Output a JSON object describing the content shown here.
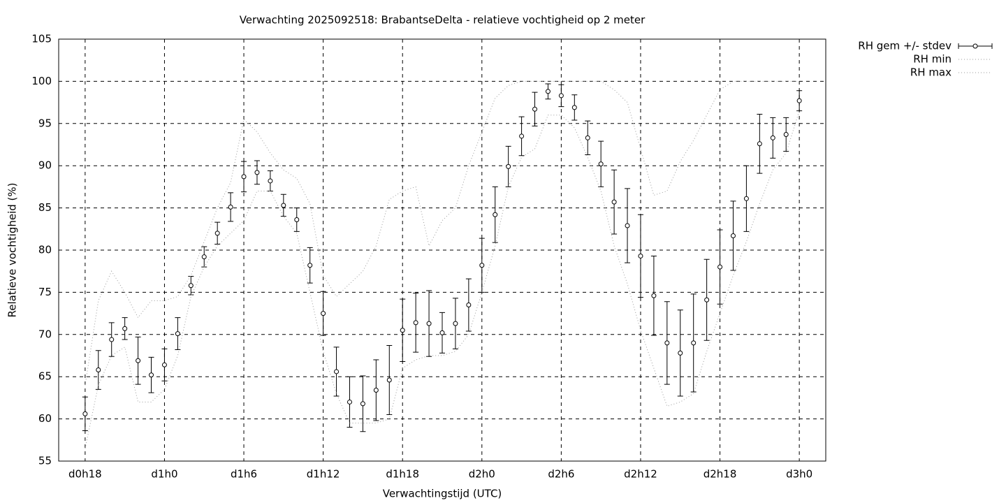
{
  "chart_data": {
    "type": "errorbar-line",
    "title": "Verwachting 2025092518: BrabantseDelta - relatieve vochtigheid op 2 meter",
    "xlabel": "Verwachtingstijd (UTC)",
    "ylabel": "Relatieve vochtigheid (%)",
    "x": [
      18,
      19,
      20,
      21,
      22,
      23,
      24,
      25,
      26,
      27,
      28,
      29,
      30,
      31,
      32,
      33,
      34,
      35,
      36,
      37,
      38,
      39,
      40,
      41,
      42,
      43,
      44,
      45,
      46,
      47,
      48,
      49,
      50,
      51,
      52,
      53,
      54,
      55,
      56,
      57,
      58,
      59,
      60,
      61,
      62,
      63,
      64,
      65,
      66,
      67,
      68,
      69,
      70,
      71,
      72
    ],
    "xlim": [
      16,
      74
    ],
    "xticks": [
      {
        "value": 18,
        "label": "d0h18"
      },
      {
        "value": 24,
        "label": "d1h0"
      },
      {
        "value": 30,
        "label": "d1h6"
      },
      {
        "value": 36,
        "label": "d1h12"
      },
      {
        "value": 42,
        "label": "d1h18"
      },
      {
        "value": 48,
        "label": "d2h0"
      },
      {
        "value": 54,
        "label": "d2h6"
      },
      {
        "value": 60,
        "label": "d2h12"
      },
      {
        "value": 66,
        "label": "d2h18"
      },
      {
        "value": 72,
        "label": "d3h0"
      }
    ],
    "ylim": [
      55,
      105
    ],
    "yticks": [
      55,
      60,
      65,
      70,
      75,
      80,
      85,
      90,
      95,
      100,
      105
    ],
    "grid": true,
    "legend": "outside-top-right",
    "series": [
      {
        "name": "RH gem +/- stdev",
        "color": "#000000",
        "style": "errorbar",
        "values": [
          60.6,
          65.8,
          69.4,
          70.7,
          66.9,
          65.2,
          66.4,
          70.1,
          75.8,
          79.2,
          82.0,
          85.1,
          88.7,
          89.2,
          88.2,
          85.3,
          83.6,
          78.2,
          72.5,
          65.6,
          62.0,
          61.8,
          63.4,
          64.6,
          70.5,
          71.4,
          71.3,
          70.2,
          71.3,
          73.5,
          78.2,
          84.2,
          89.9,
          93.5,
          96.7,
          98.8,
          98.3,
          96.9,
          93.3,
          90.2,
          85.7,
          82.9,
          79.3,
          74.6,
          69.0,
          67.8,
          69.0,
          74.1,
          78.0,
          81.7,
          86.1,
          92.6,
          93.3,
          93.7,
          97.7
        ],
        "errors": [
          2.0,
          2.3,
          2.0,
          1.3,
          2.8,
          2.1,
          1.9,
          1.9,
          1.1,
          1.2,
          1.3,
          1.7,
          1.8,
          1.4,
          1.2,
          1.3,
          1.4,
          2.1,
          2.6,
          2.9,
          3.0,
          3.3,
          3.6,
          4.1,
          3.7,
          3.5,
          3.9,
          2.4,
          3.0,
          3.1,
          3.2,
          3.3,
          2.4,
          2.3,
          2.0,
          0.9,
          1.3,
          1.5,
          2.0,
          2.7,
          3.8,
          4.4,
          4.9,
          4.7,
          4.9,
          5.1,
          5.8,
          4.8,
          4.4,
          4.1,
          3.9,
          3.5,
          2.4,
          2.0,
          1.2
        ]
      },
      {
        "name": "RH min",
        "color": "#9a9a9a",
        "style": "dotted",
        "values": [
          56.5,
          64,
          67.5,
          68.5,
          62,
          62,
          63.5,
          67.5,
          74.5,
          78,
          80.5,
          82,
          83.5,
          87,
          87,
          84,
          82,
          75,
          68,
          63,
          59.5,
          59.5,
          59.5,
          60,
          66,
          67,
          67.5,
          67.5,
          68,
          70,
          75,
          80.5,
          87.5,
          91,
          92,
          96,
          96,
          94.5,
          91,
          87,
          80.5,
          76,
          70.5,
          66,
          61.5,
          62,
          63,
          68,
          72.5,
          77,
          81,
          85.5,
          89.5,
          91.5,
          96.5
        ]
      },
      {
        "name": "RH max",
        "color": "#9a9a9a",
        "style": "dotted",
        "values": [
          64,
          74,
          77.5,
          75,
          72,
          74,
          74,
          74.5,
          77,
          81,
          85,
          88,
          95.5,
          94,
          91.5,
          89.5,
          88.5,
          85.5,
          77,
          74.5,
          76,
          77.5,
          80.5,
          86,
          87,
          87.5,
          80.5,
          83.5,
          85,
          90,
          94,
          98,
          99.5,
          100,
          100,
          100,
          100,
          100,
          100,
          100,
          99,
          97.5,
          92,
          86.5,
          87,
          90.5,
          93,
          96,
          99,
          100,
          100,
          100,
          100,
          100,
          100
        ]
      }
    ]
  }
}
